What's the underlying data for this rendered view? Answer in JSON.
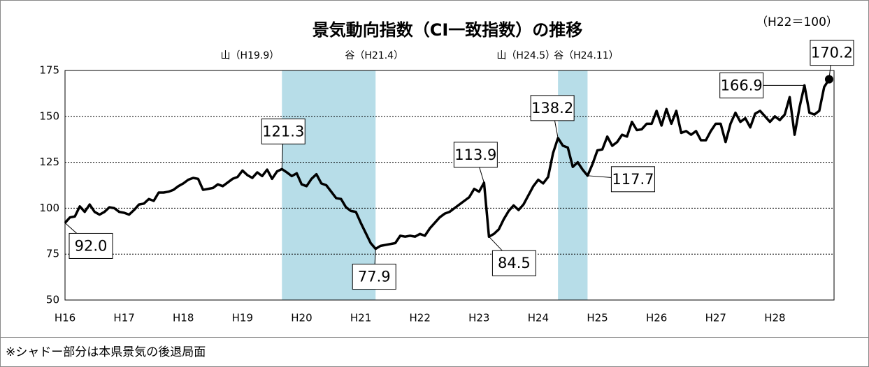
{
  "chart_data": {
    "type": "line",
    "title": "景気動向指数（CI一致指数）の推移",
    "subtitle": "（H22＝100）",
    "note": "※シャドー部分は本県景気の後退局面",
    "color": "#000000",
    "shade_color": "#b7dde8",
    "grid": true,
    "categories": [
      "H16",
      null,
      null,
      null,
      null,
      null,
      null,
      null,
      null,
      null,
      null,
      null,
      "H17",
      null,
      null,
      null,
      null,
      null,
      null,
      null,
      null,
      null,
      null,
      null,
      "H18",
      null,
      null,
      null,
      null,
      null,
      null,
      null,
      null,
      null,
      null,
      null,
      "H19",
      null,
      null,
      null,
      null,
      null,
      null,
      null,
      null,
      null,
      null,
      null,
      "H20",
      null,
      null,
      null,
      null,
      null,
      null,
      null,
      null,
      null,
      null,
      null,
      "H21",
      null,
      null,
      null,
      null,
      null,
      null,
      null,
      null,
      null,
      null,
      null,
      "H22",
      null,
      null,
      null,
      null,
      null,
      null,
      null,
      null,
      null,
      null,
      null,
      "H23",
      null,
      null,
      null,
      null,
      null,
      null,
      null,
      null,
      null,
      null,
      null,
      "H24",
      null,
      null,
      null,
      null,
      null,
      null,
      null,
      null,
      null,
      null,
      null,
      "H25",
      null,
      null,
      null,
      null,
      null,
      null,
      null,
      null,
      null,
      null,
      null,
      "H26",
      null,
      null,
      null,
      null,
      null,
      null,
      null,
      null,
      null,
      null,
      null,
      "H27",
      null,
      null,
      null,
      null,
      null,
      null,
      null,
      null,
      null,
      null,
      null,
      "H28",
      null,
      null,
      null,
      null,
      null,
      null,
      null,
      null,
      null,
      null,
      null
    ],
    "values": [
      92.0,
      95,
      95.5,
      101,
      98,
      102,
      98,
      96.5,
      98,
      100.5,
      100,
      98,
      97.5,
      96.5,
      99,
      102,
      102.5,
      105,
      104,
      108.5,
      108.5,
      109,
      110,
      112,
      113.5,
      115.5,
      116.5,
      116,
      110,
      110.5,
      111,
      113,
      112,
      114,
      116,
      117,
      120.5,
      118,
      116.5,
      119.5,
      117.5,
      121,
      116,
      120,
      121.3,
      119.5,
      117.5,
      119,
      113,
      112,
      116,
      118.5,
      113.5,
      112.5,
      109,
      105.5,
      105,
      100.5,
      98.5,
      98,
      92,
      86.5,
      81,
      77.9,
      79.5,
      80,
      80.5,
      81,
      85,
      84.5,
      85,
      84.5,
      86,
      85,
      89,
      92,
      95,
      97,
      98,
      100,
      102,
      104,
      106,
      110.5,
      109,
      113.9,
      84.5,
      86,
      88.5,
      94,
      98.5,
      101.5,
      99,
      102,
      107,
      112,
      115.5,
      113.5,
      117,
      130,
      138.2,
      134,
      133,
      122.5,
      125,
      121,
      117.7,
      124,
      131.5,
      132,
      139,
      134,
      136,
      140,
      139,
      147,
      142.5,
      143,
      146,
      146,
      153,
      145,
      154,
      146,
      153,
      141,
      142,
      140,
      142,
      137,
      137,
      142,
      146,
      146,
      136,
      146,
      152,
      147,
      149,
      144,
      151.5,
      153,
      150,
      147,
      150,
      148,
      151,
      160.5,
      140,
      155,
      166.9,
      152,
      151,
      153,
      166,
      170.2
    ],
    "value_labels": [
      "92.0",
      null,
      null,
      null,
      null,
      null,
      null,
      null,
      null,
      null,
      null,
      null,
      null,
      null,
      null,
      null,
      null,
      null,
      null,
      null,
      null,
      null,
      null,
      null,
      null,
      null,
      null,
      null,
      null,
      null,
      null,
      null,
      null,
      null,
      null,
      null,
      null,
      null,
      null,
      null,
      null,
      null,
      null,
      null,
      "121.3",
      null,
      null,
      null,
      null,
      null,
      null,
      null,
      null,
      null,
      null,
      null,
      null,
      null,
      null,
      null,
      null,
      null,
      null,
      "77.9",
      null,
      null,
      null,
      null,
      null,
      null,
      null,
      null,
      null,
      null,
      null,
      null,
      null,
      null,
      null,
      null,
      null,
      null,
      null,
      null,
      null,
      "113.9",
      "84.5",
      null,
      null,
      null,
      null,
      null,
      null,
      null,
      null,
      null,
      null,
      null,
      null,
      null,
      "138.2",
      null,
      null,
      null,
      null,
      null,
      "117.7",
      null,
      null,
      null,
      null,
      null,
      null,
      null,
      null,
      null,
      null,
      null,
      null,
      null,
      null,
      null,
      null,
      null,
      null,
      null,
      null,
      null,
      null,
      null,
      null,
      null,
      null,
      null,
      null,
      null,
      null,
      null,
      null,
      null,
      null,
      null,
      null,
      null,
      null,
      null,
      null,
      null,
      null,
      null,
      "166.9",
      null,
      null,
      null,
      null,
      "170.2"
    ],
    "recessions": [
      {
        "start": 44,
        "end": 63,
        "start_label": "山（H19.9）",
        "end_label": "谷（H21.4）"
      },
      {
        "start": 100,
        "end": 106,
        "start_label": "山（H24.5）",
        "end_label": "谷（H24.11）"
      }
    ],
    "ylim": [
      50,
      175
    ],
    "yticks": [
      50,
      75,
      100,
      125,
      150,
      175
    ]
  }
}
